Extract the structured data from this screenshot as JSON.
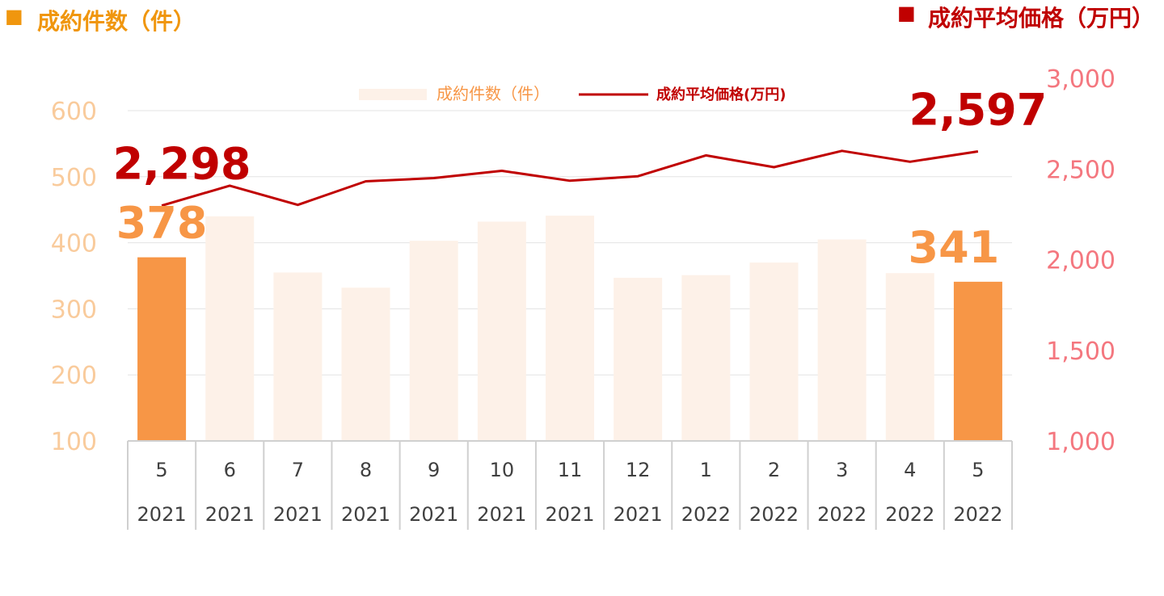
{
  "header": {
    "left_marker": "■",
    "left_title": "成約件数（件）",
    "right_marker": "■",
    "right_title": "成約平均価格（万円）"
  },
  "colors": {
    "bar_highlight": "#F79646",
    "bar_muted": "#FDF1E8",
    "line": "#C00000",
    "left_axis": "#F9CB9C",
    "right_axis": "#F4777F",
    "left_header": "#F0960E",
    "right_header": "#C00000"
  },
  "chart_data": {
    "type": "bar",
    "categories": [
      [
        "5",
        "2021"
      ],
      [
        "6",
        "2021"
      ],
      [
        "7",
        "2021"
      ],
      [
        "8",
        "2021"
      ],
      [
        "9",
        "2021"
      ],
      [
        "10",
        "2021"
      ],
      [
        "11",
        "2021"
      ],
      [
        "12",
        "2021"
      ],
      [
        "1",
        "2022"
      ],
      [
        "2",
        "2022"
      ],
      [
        "3",
        "2022"
      ],
      [
        "4",
        "2022"
      ],
      [
        "5",
        "2022"
      ]
    ],
    "series": [
      {
        "name": "成約件数（件）",
        "type": "bar",
        "axis": "left",
        "values": [
          378,
          440,
          355,
          332,
          403,
          432,
          441,
          347,
          351,
          370,
          405,
          354,
          341
        ],
        "highlighted_indices": [
          0,
          12
        ]
      },
      {
        "name": "成約平均価格(万円)",
        "type": "line",
        "axis": "right",
        "values": [
          2298,
          2408,
          2302,
          2432,
          2450,
          2490,
          2435,
          2460,
          2575,
          2510,
          2600,
          2540,
          2597
        ]
      }
    ],
    "left_axis": {
      "range": [
        100,
        600
      ],
      "ticks": [
        "100",
        "200",
        "300",
        "400",
        "500",
        "600"
      ]
    },
    "right_axis": {
      "range": [
        1000,
        3000
      ],
      "ticks": [
        "1,000",
        "1,500",
        "2,000",
        "2,500",
        "3,000"
      ]
    },
    "data_labels": [
      {
        "series": 0,
        "index": 0,
        "text": "378"
      },
      {
        "series": 0,
        "index": 12,
        "text": "341"
      },
      {
        "series": 1,
        "index": 0,
        "text": "2,298"
      },
      {
        "series": 1,
        "index": 12,
        "text": "2,597"
      }
    ],
    "grid": true,
    "legend_position": "top-center"
  }
}
